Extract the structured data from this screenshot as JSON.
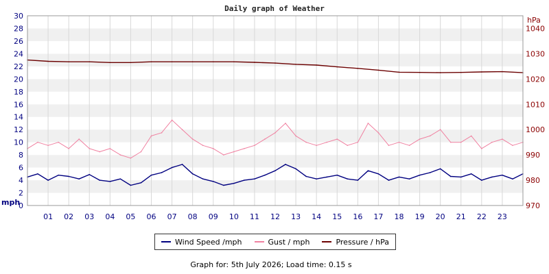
{
  "chart_data": {
    "type": "line",
    "title": "Daily graph of Weather",
    "y_left": {
      "unit": "mph",
      "range": [
        0,
        30
      ],
      "ticks": [
        "0",
        "2",
        "4",
        "6",
        "8",
        "10",
        "12",
        "14",
        "16",
        "18",
        "20",
        "22",
        "24",
        "26",
        "28",
        "30"
      ]
    },
    "y_right": {
      "unit": "hPa",
      "range": [
        970,
        1045
      ],
      "ticks": [
        "970",
        "980",
        "990",
        "1000",
        "1010",
        "1020",
        "1030",
        "1040"
      ]
    },
    "x": {
      "range": [
        0,
        24
      ],
      "ticks": [
        "01",
        "02",
        "03",
        "04",
        "05",
        "06",
        "07",
        "08",
        "09",
        "10",
        "11",
        "12",
        "13",
        "14",
        "15",
        "16",
        "17",
        "18",
        "19",
        "20",
        "21",
        "22",
        "23"
      ]
    },
    "grid": true,
    "legend_position": "bottom",
    "series": [
      {
        "name": "Wind Speed /mph",
        "axis": "left",
        "color": "#000080",
        "x": [
          0,
          0.5,
          1,
          1.5,
          2,
          2.5,
          3,
          3.5,
          4,
          4.5,
          5,
          5.5,
          6,
          6.5,
          7,
          7.5,
          8,
          8.5,
          9,
          9.5,
          10,
          10.5,
          11,
          11.5,
          12,
          12.5,
          13,
          13.5,
          14,
          14.5,
          15,
          15.5,
          16,
          16.5,
          17,
          17.5,
          18,
          18.5,
          19,
          19.5,
          20,
          20.5,
          21,
          21.5,
          22,
          22.5,
          23,
          23.5,
          24
        ],
        "y": [
          4.5,
          5.0,
          4.0,
          4.8,
          4.6,
          4.2,
          4.9,
          4.0,
          3.8,
          4.2,
          3.2,
          3.6,
          4.8,
          5.2,
          6.0,
          6.5,
          5.0,
          4.2,
          3.8,
          3.2,
          3.5,
          4.0,
          4.2,
          4.8,
          5.5,
          6.5,
          5.8,
          4.6,
          4.2,
          4.5,
          4.8,
          4.2,
          4.0,
          5.5,
          5.0,
          4.0,
          4.5,
          4.2,
          4.8,
          5.2,
          5.8,
          4.6,
          4.5,
          5.0,
          4.0,
          4.5,
          4.8,
          4.2,
          5.0
        ]
      },
      {
        "name": "Gust / mph",
        "axis": "left",
        "color": "#f080a0",
        "x": [
          0,
          0.5,
          1,
          1.5,
          2,
          2.5,
          3,
          3.5,
          4,
          4.5,
          5,
          5.5,
          6,
          6.5,
          7,
          7.5,
          8,
          8.5,
          9,
          9.5,
          10,
          10.5,
          11,
          11.5,
          12,
          12.5,
          13,
          13.5,
          14,
          14.5,
          15,
          15.5,
          16,
          16.5,
          17,
          17.5,
          18,
          18.5,
          19,
          19.5,
          20,
          20.5,
          21,
          21.5,
          22,
          22.5,
          23,
          23.5,
          24
        ],
        "y": [
          9.0,
          10.0,
          9.5,
          10.0,
          9.0,
          10.5,
          9.0,
          8.5,
          9.0,
          8.0,
          7.5,
          8.5,
          11.0,
          11.5,
          13.5,
          12.0,
          10.5,
          9.5,
          9.0,
          8.0,
          8.5,
          9.0,
          9.5,
          10.5,
          11.5,
          13.0,
          11.0,
          10.0,
          9.5,
          10.0,
          10.5,
          9.5,
          10.0,
          13.0,
          11.5,
          9.5,
          10.0,
          9.5,
          10.5,
          11.0,
          12.0,
          10.0,
          10.0,
          11.0,
          9.0,
          10.0,
          10.5,
          9.5,
          10.0
        ]
      },
      {
        "name": "Pressure / hPa",
        "axis": "right",
        "color": "#6b0000",
        "x": [
          0,
          1,
          2,
          3,
          4,
          5,
          6,
          7,
          8,
          9,
          10,
          11,
          12,
          13,
          14,
          15,
          16,
          17,
          18,
          19,
          20,
          21,
          22,
          23,
          24
        ],
        "y": [
          1027.5,
          1027.0,
          1026.8,
          1026.8,
          1026.5,
          1026.5,
          1026.8,
          1026.8,
          1026.8,
          1026.8,
          1026.8,
          1026.6,
          1026.3,
          1025.8,
          1025.5,
          1024.8,
          1024.2,
          1023.5,
          1022.7,
          1022.6,
          1022.5,
          1022.6,
          1022.8,
          1022.9,
          1022.5
        ]
      }
    ]
  },
  "footer_text": "Graph for: 5th July 2026; Load time: 0.15 s"
}
